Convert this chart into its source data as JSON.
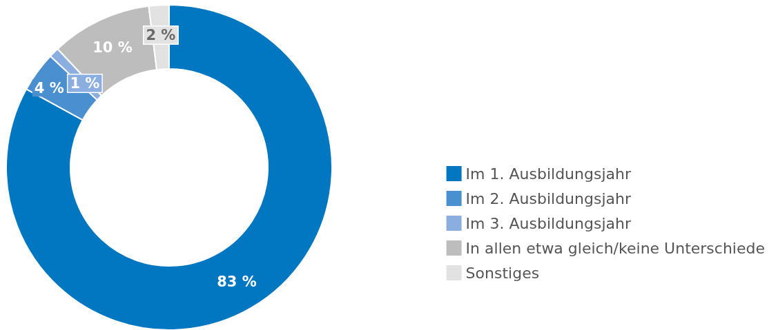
{
  "chart_data": {
    "type": "donut",
    "categories": [
      "Im 1. Ausbildungsjahr",
      "Im 2. Ausbildungsjahr",
      "Im 3. Ausbildungsjahr",
      "In allen etwa gleich/keine Unterschiede",
      "Sonstiges"
    ],
    "values": [
      83,
      4,
      1,
      10,
      2
    ],
    "colors": [
      "#0077c0",
      "#4a8fd0",
      "#8aaee0",
      "#bdbdbd",
      "#e2e2e2"
    ],
    "value_labels": [
      "83 %",
      "4 %",
      "1 %",
      "10 %",
      "2 %"
    ],
    "legend": "right"
  }
}
